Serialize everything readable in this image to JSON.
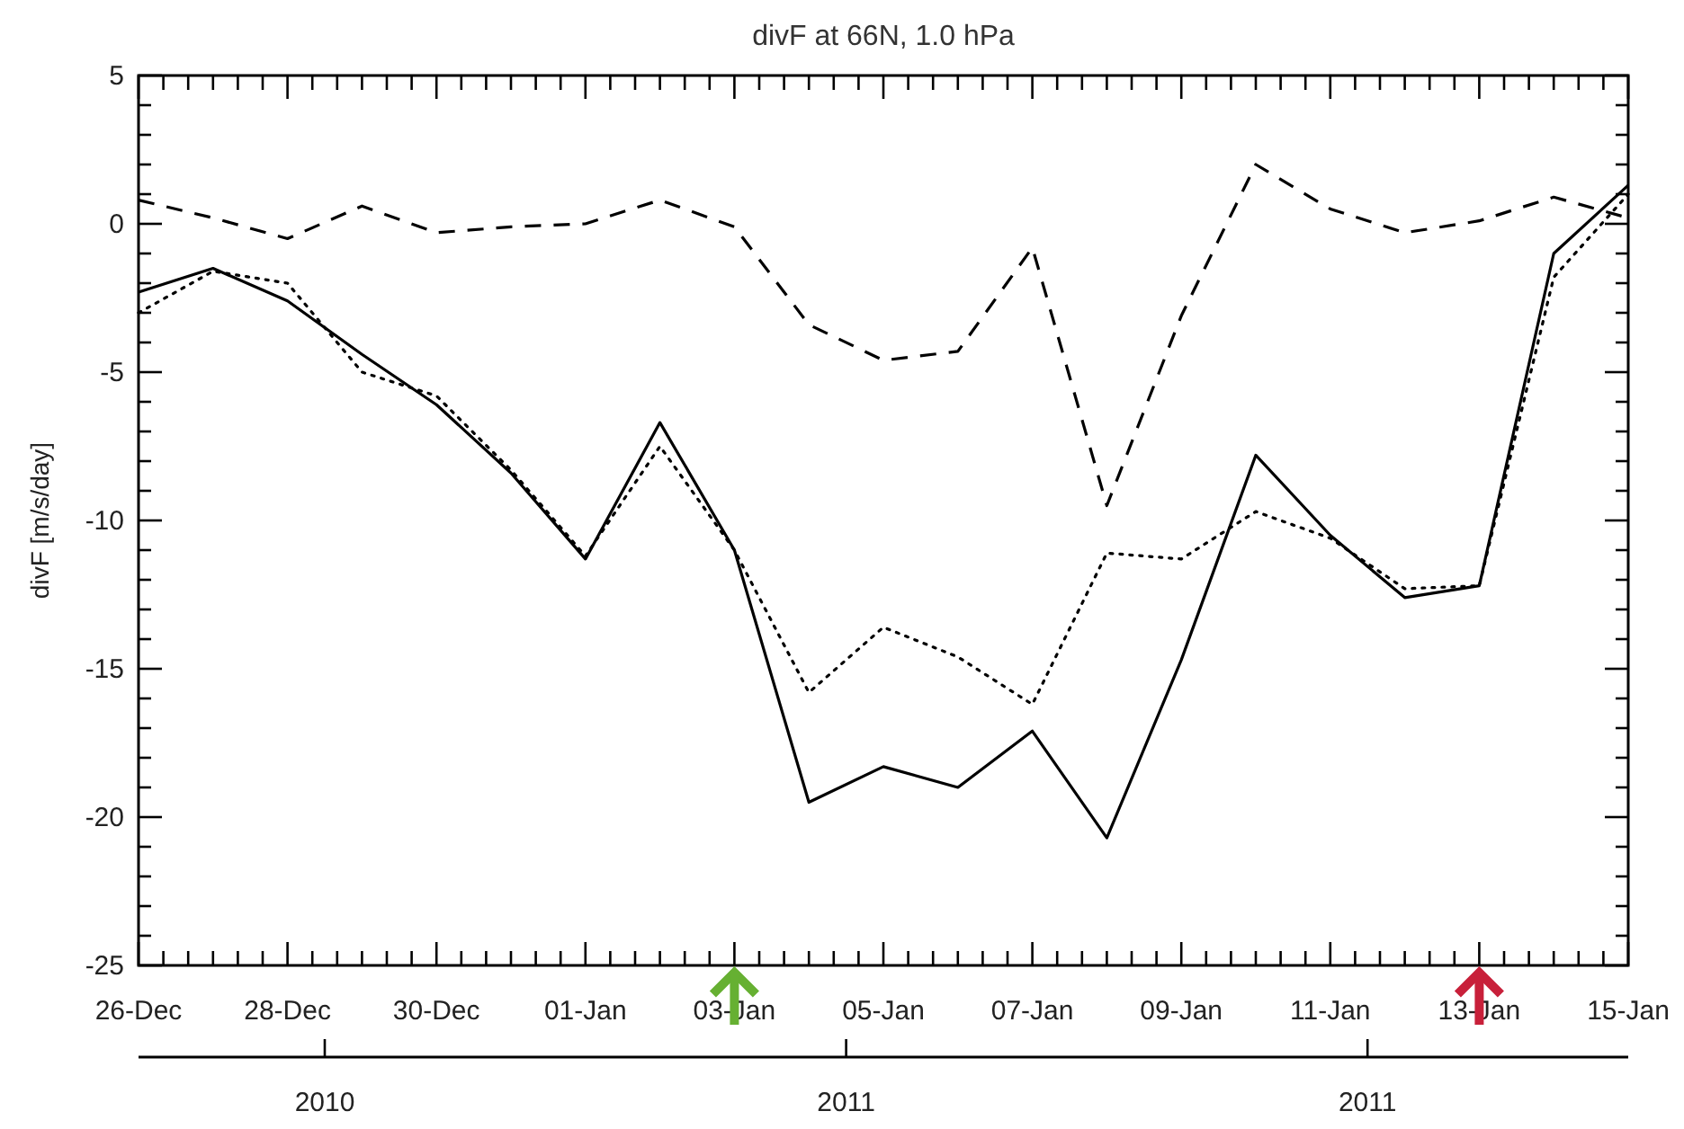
{
  "chart_data": {
    "type": "line",
    "title": "divF at 66N, 1.0 hPa",
    "ylabel": "divF [m/s/day]",
    "x": [
      "2010-12-26",
      "2010-12-27",
      "2010-12-28",
      "2010-12-29",
      "2010-12-30",
      "2010-12-31",
      "2011-01-01",
      "2011-01-02",
      "2011-01-03",
      "2011-01-04",
      "2011-01-05",
      "2011-01-06",
      "2011-01-07",
      "2011-01-08",
      "2011-01-09",
      "2011-01-10",
      "2011-01-11",
      "2011-01-12",
      "2011-01-13",
      "2011-01-14",
      "2011-01-15"
    ],
    "series": [
      {
        "color": "#000000",
        "line_style": "solid",
        "values": [
          -2.3,
          -1.5,
          -2.6,
          -4.4,
          -6.1,
          -8.4,
          -11.3,
          -6.7,
          -11.0,
          -19.5,
          -18.3,
          -19.0,
          -17.1,
          -20.7,
          -14.7,
          -7.8,
          -10.5,
          -12.6,
          -12.2,
          -1.0,
          1.3
        ]
      },
      {
        "color": "#000000",
        "line_style": "dotted",
        "values": [
          -3.0,
          -1.6,
          -2.0,
          -5.0,
          -5.8,
          -8.3,
          -11.2,
          -7.5,
          -11.0,
          -15.8,
          -13.6,
          -14.6,
          -16.2,
          -11.1,
          -11.3,
          -9.7,
          -10.6,
          -12.3,
          -12.2,
          -1.8,
          1.0
        ]
      },
      {
        "color": "#000000",
        "line_style": "dashed",
        "values": [
          0.8,
          0.2,
          -0.5,
          0.6,
          -0.3,
          -0.1,
          0.0,
          0.8,
          -0.1,
          -3.4,
          -4.6,
          -4.3,
          -0.8,
          -9.5,
          -3.1,
          2.0,
          0.5,
          -0.3,
          0.1,
          0.9,
          0.2
        ]
      }
    ],
    "xlim": [
      "2010-12-26",
      "2011-01-15"
    ],
    "xticks": [
      {
        "value": "2010-12-26",
        "label": "26-Dec"
      },
      {
        "value": "2010-12-26T08:00",
        "label": null
      },
      {
        "value": "2010-12-26T16:00",
        "label": null
      },
      {
        "value": "2010-12-27",
        "label": null
      },
      {
        "value": "2010-12-27T08:00",
        "label": null
      },
      {
        "value": "2010-12-27T16:00",
        "label": null
      },
      {
        "value": "2010-12-28",
        "label": "28-Dec"
      },
      {
        "value": "2010-12-28T08:00",
        "label": null
      },
      {
        "value": "2010-12-28T16:00",
        "label": null
      },
      {
        "value": "2010-12-29",
        "label": null
      },
      {
        "value": "2010-12-29T08:00",
        "label": null
      },
      {
        "value": "2010-12-29T16:00",
        "label": null
      },
      {
        "value": "2010-12-30",
        "label": "30-Dec"
      },
      {
        "value": "2010-12-30T08:00",
        "label": null
      },
      {
        "value": "2010-12-30T16:00",
        "label": null
      },
      {
        "value": "2010-12-31",
        "label": null
      },
      {
        "value": "2010-12-31T08:00",
        "label": null
      },
      {
        "value": "2010-12-31T16:00",
        "label": null
      },
      {
        "value": "2011-01-01",
        "label": "01-Jan"
      },
      {
        "value": "2011-01-01T08:00",
        "label": null
      },
      {
        "value": "2011-01-01T16:00",
        "label": null
      },
      {
        "value": "2011-01-02",
        "label": null
      },
      {
        "value": "2011-01-02T08:00",
        "label": null
      },
      {
        "value": "2011-01-02T16:00",
        "label": null
      },
      {
        "value": "2011-01-03",
        "label": "03-Jan"
      },
      {
        "value": "2011-01-03T08:00",
        "label": null
      },
      {
        "value": "2011-01-03T16:00",
        "label": null
      },
      {
        "value": "2011-01-04",
        "label": null
      },
      {
        "value": "2011-01-04T08:00",
        "label": null
      },
      {
        "value": "2011-01-04T16:00",
        "label": null
      },
      {
        "value": "2011-01-05",
        "label": "05-Jan"
      },
      {
        "value": "2011-01-05T08:00",
        "label": null
      },
      {
        "value": "2011-01-05T16:00",
        "label": null
      },
      {
        "value": "2011-01-06",
        "label": null
      },
      {
        "value": "2011-01-06T08:00",
        "label": null
      },
      {
        "value": "2011-01-06T16:00",
        "label": null
      },
      {
        "value": "2011-01-07",
        "label": "07-Jan"
      },
      {
        "value": "2011-01-07T08:00",
        "label": null
      },
      {
        "value": "2011-01-07T16:00",
        "label": null
      },
      {
        "value": "2011-01-08",
        "label": null
      },
      {
        "value": "2011-01-08T08:00",
        "label": null
      },
      {
        "value": "2011-01-08T16:00",
        "label": null
      },
      {
        "value": "2011-01-09",
        "label": "09-Jan"
      },
      {
        "value": "2011-01-09T08:00",
        "label": null
      },
      {
        "value": "2011-01-09T16:00",
        "label": null
      },
      {
        "value": "2011-01-10",
        "label": null
      },
      {
        "value": "2011-01-10T08:00",
        "label": null
      },
      {
        "value": "2011-01-10T16:00",
        "label": null
      },
      {
        "value": "2011-01-11",
        "label": "11-Jan"
      },
      {
        "value": "2011-01-11T08:00",
        "label": null
      },
      {
        "value": "2011-01-11T16:00",
        "label": null
      },
      {
        "value": "2011-01-12",
        "label": null
      },
      {
        "value": "2011-01-12T08:00",
        "label": null
      },
      {
        "value": "2011-01-12T16:00",
        "label": null
      },
      {
        "value": "2011-01-13",
        "label": "13-Jan"
      },
      {
        "value": "2011-01-13T08:00",
        "label": null
      },
      {
        "value": "2011-01-13T16:00",
        "label": null
      },
      {
        "value": "2011-01-14",
        "label": null
      },
      {
        "value": "2011-01-14T08:00",
        "label": null
      },
      {
        "value": "2011-01-14T16:00",
        "label": null
      },
      {
        "value": "2011-01-15",
        "label": "15-Jan"
      }
    ],
    "x2lim": [
      "2010-12-26",
      "2011-01-15"
    ],
    "x2ticks": [
      {
        "value": "2010-12-28T12:00",
        "label": "2010"
      },
      {
        "value": "2011-01-04T12:00",
        "label": "2011"
      },
      {
        "value": "2011-01-11T12:00",
        "label": "2011"
      }
    ],
    "ylim": [
      -25,
      5
    ],
    "yticks": [
      -25,
      {
        "value": -24,
        "label": null
      },
      {
        "value": -23,
        "label": null
      },
      {
        "value": -22,
        "label": null
      },
      {
        "value": -21,
        "label": null
      },
      -20,
      {
        "value": -19,
        "label": null
      },
      {
        "value": -18,
        "label": null
      },
      {
        "value": -17,
        "label": null
      },
      {
        "value": -16,
        "label": null
      },
      -15,
      {
        "value": -14,
        "label": null
      },
      {
        "value": -13,
        "label": null
      },
      {
        "value": -12,
        "label": null
      },
      {
        "value": -11,
        "label": null
      },
      -10,
      {
        "value": -9,
        "label": null
      },
      {
        "value": -8,
        "label": null
      },
      {
        "value": -7,
        "label": null
      },
      {
        "value": -6,
        "label": null
      },
      -5,
      {
        "value": -4,
        "label": null
      },
      {
        "value": -3,
        "label": null
      },
      {
        "value": -2,
        "label": null
      },
      {
        "value": -1,
        "label": null
      },
      0,
      {
        "value": 1,
        "label": null
      },
      {
        "value": 2,
        "label": null
      },
      {
        "value": 3,
        "label": null
      },
      {
        "value": 4,
        "label": null
      },
      5
    ],
    "marker": "none"
  }
}
